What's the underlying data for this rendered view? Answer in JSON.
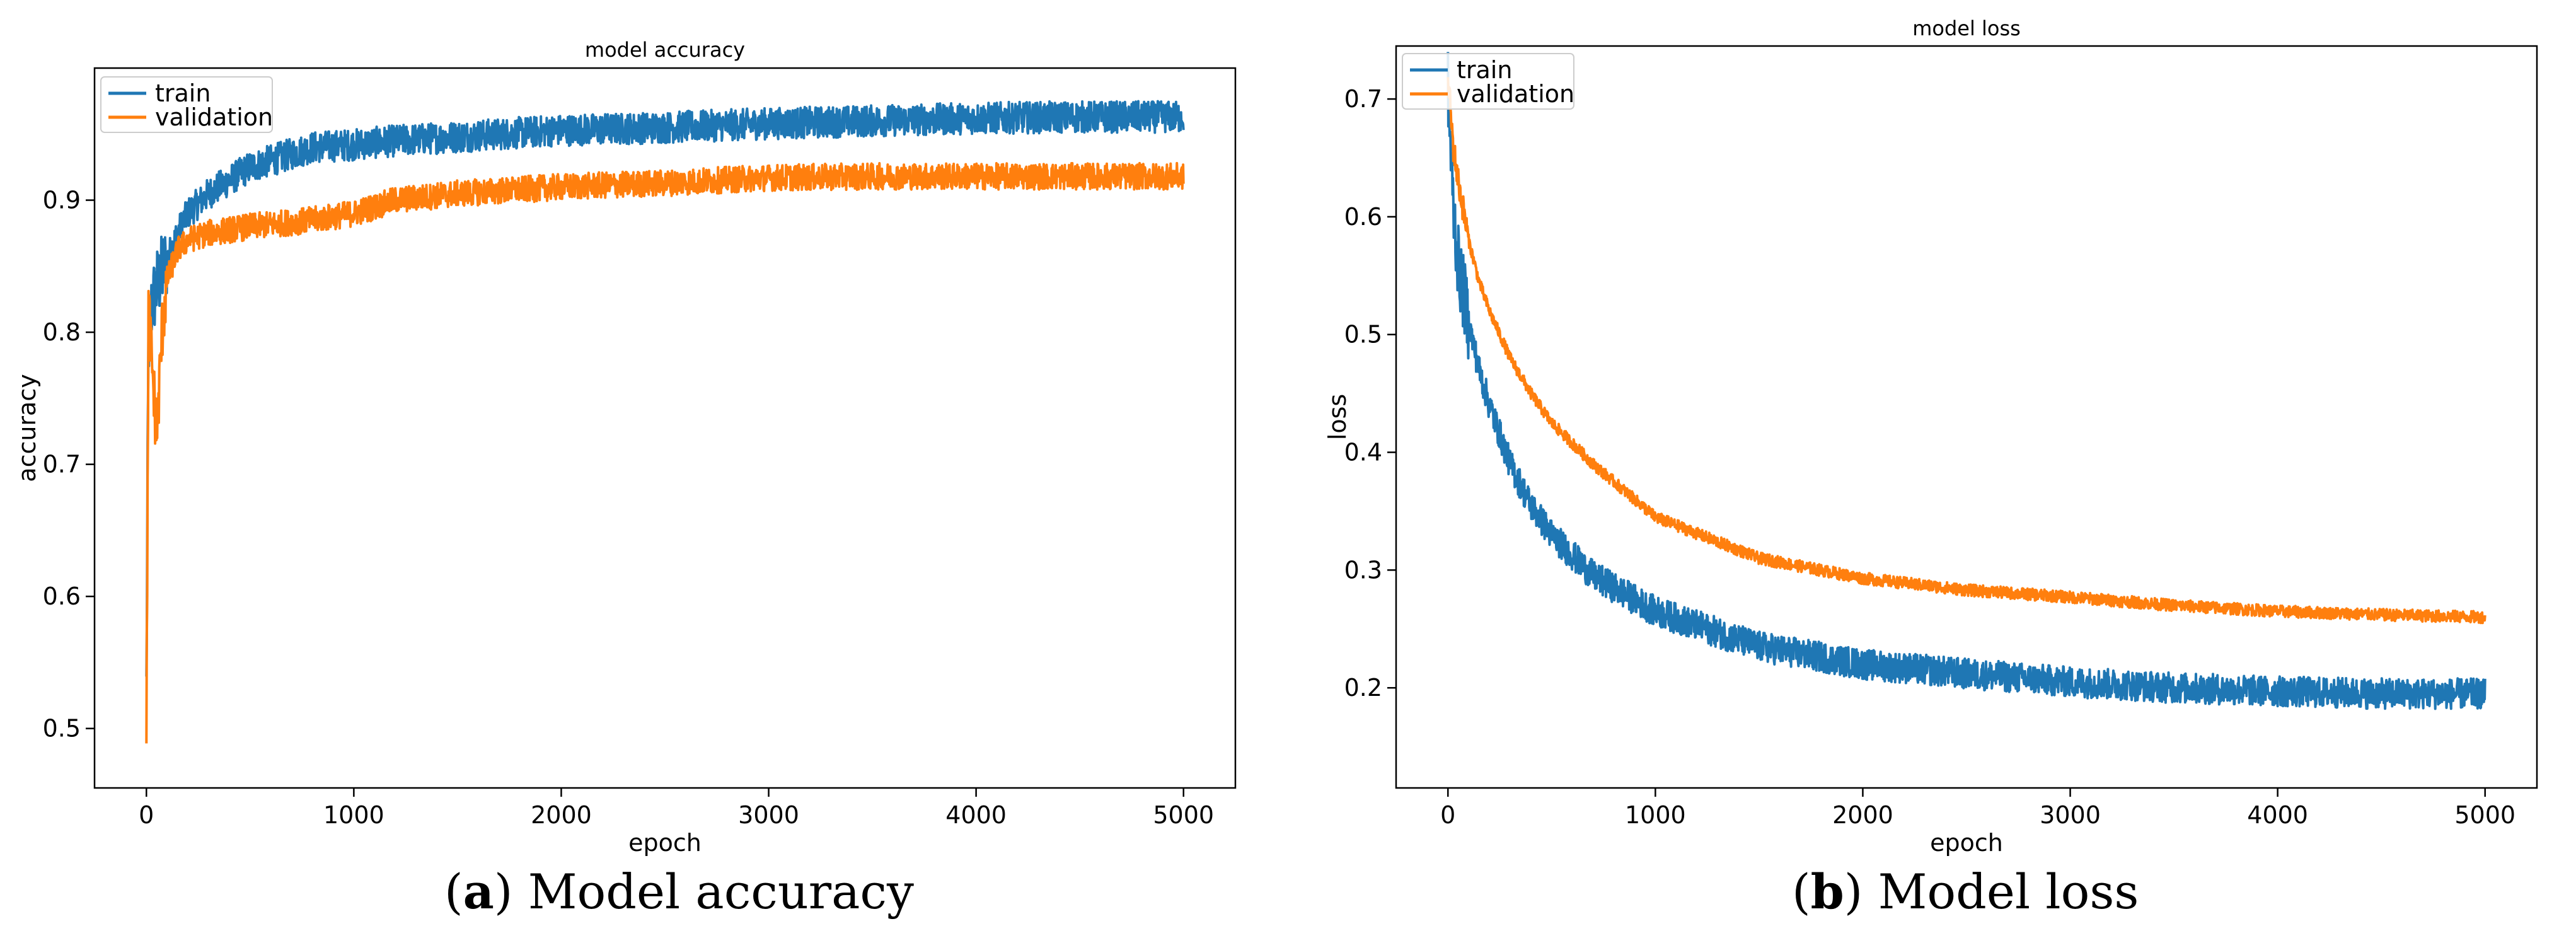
{
  "chart_data": [
    {
      "type": "line",
      "title": "model accuracy",
      "xlabel": "epoch",
      "ylabel": "accuracy",
      "xlim": [
        -250,
        5250
      ],
      "ylim": [
        0.455,
        1.0
      ],
      "xticks": [
        0,
        1000,
        2000,
        3000,
        4000,
        5000
      ],
      "xtick_labels": [
        "0",
        "1000",
        "2000",
        "3000",
        "4000",
        "5000"
      ],
      "yticks": [
        0.5,
        0.6,
        0.7,
        0.8,
        0.9
      ],
      "ytick_labels": [
        "0.5",
        "0.6",
        "0.7",
        "0.8",
        "0.9"
      ],
      "legend_position": "top-left",
      "series": [
        {
          "name": "train",
          "color": "#1f77b4",
          "x": [
            0,
            10,
            25,
            50,
            100,
            150,
            200,
            300,
            400,
            500,
            600,
            700,
            800,
            1000,
            1200,
            1500,
            2000,
            2500,
            3000,
            3500,
            4000,
            4500,
            5000
          ],
          "values": [
            0.53,
            0.79,
            0.82,
            0.835,
            0.855,
            0.875,
            0.89,
            0.905,
            0.915,
            0.925,
            0.93,
            0.935,
            0.94,
            0.942,
            0.945,
            0.948,
            0.953,
            0.955,
            0.958,
            0.96,
            0.962,
            0.963,
            0.963
          ],
          "noise": 0.012
        },
        {
          "name": "validation",
          "color": "#ff7f0e",
          "x": [
            0,
            10,
            25,
            50,
            75,
            100,
            150,
            200,
            300,
            500,
            800,
            1000,
            1200,
            1500,
            2000,
            2500,
            3000,
            3500,
            4000,
            4500,
            5000
          ],
          "values": [
            0.48,
            0.82,
            0.78,
            0.72,
            0.8,
            0.84,
            0.862,
            0.87,
            0.875,
            0.88,
            0.885,
            0.89,
            0.9,
            0.905,
            0.91,
            0.913,
            0.917,
            0.918,
            0.918,
            0.918,
            0.918
          ],
          "noise": 0.01
        }
      ]
    },
    {
      "type": "line",
      "title": "model loss",
      "xlabel": "epoch",
      "ylabel": "loss",
      "xlim": [
        -250,
        5250
      ],
      "ylim": [
        0.115,
        0.745
      ],
      "xticks": [
        0,
        1000,
        2000,
        3000,
        4000,
        5000
      ],
      "xtick_labels": [
        "0",
        "1000",
        "2000",
        "3000",
        "4000",
        "5000"
      ],
      "yticks": [
        0.2,
        0.3,
        0.4,
        0.5,
        0.6,
        0.7
      ],
      "ytick_labels": [
        "0.2",
        "0.3",
        "0.4",
        "0.5",
        "0.6",
        "0.7"
      ],
      "legend_position": "top-left",
      "series": [
        {
          "name": "train",
          "color": "#1f77b4",
          "x": [
            0,
            25,
            50,
            100,
            150,
            200,
            300,
            400,
            500,
            700,
            1000,
            1500,
            2000,
            2500,
            3000,
            3500,
            4000,
            4500,
            5000
          ],
          "values": [
            0.71,
            0.61,
            0.56,
            0.51,
            0.47,
            0.44,
            0.39,
            0.355,
            0.33,
            0.295,
            0.265,
            0.235,
            0.22,
            0.212,
            0.205,
            0.2,
            0.197,
            0.195,
            0.195
          ],
          "noise": 0.013
        },
        {
          "name": "validation",
          "color": "#ff7f0e",
          "x": [
            0,
            25,
            50,
            100,
            150,
            200,
            300,
            400,
            500,
            700,
            1000,
            1500,
            2000,
            2500,
            3000,
            3500,
            4000,
            4500,
            5000
          ],
          "values": [
            0.72,
            0.66,
            0.63,
            0.58,
            0.545,
            0.52,
            0.48,
            0.45,
            0.425,
            0.39,
            0.345,
            0.31,
            0.293,
            0.283,
            0.277,
            0.27,
            0.265,
            0.262,
            0.26
          ],
          "noise": 0.005
        }
      ]
    }
  ],
  "captions": {
    "a": {
      "letter": "a",
      "text": " Model accuracy"
    },
    "b": {
      "letter": "b",
      "text": " Model loss"
    }
  }
}
